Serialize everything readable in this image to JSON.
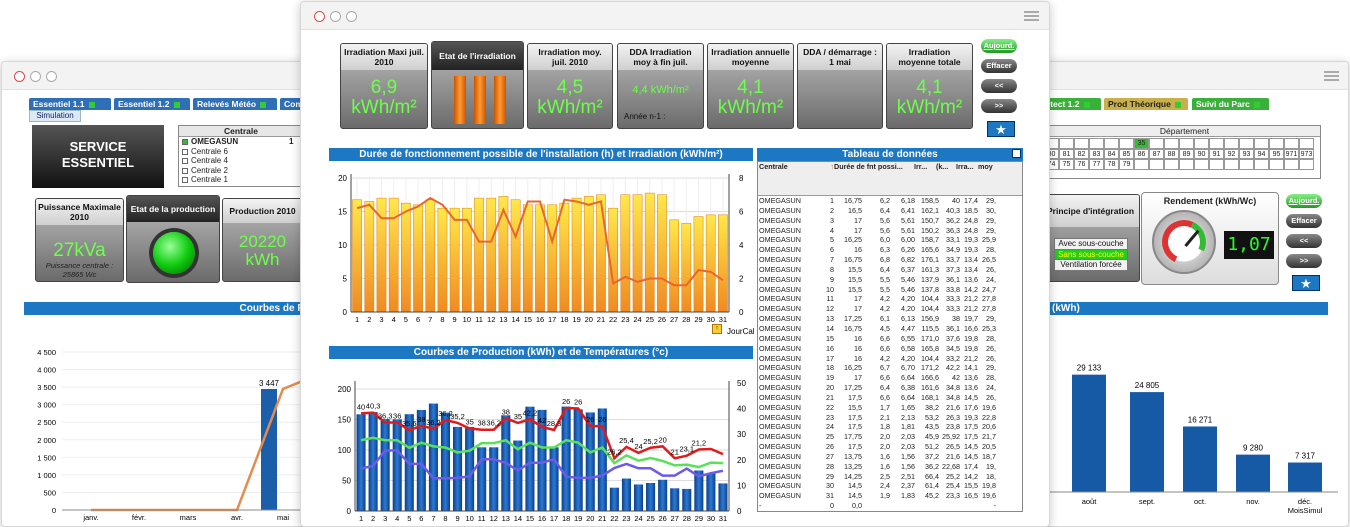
{
  "left": {
    "tabs": [
      {
        "label": "Essentiel 1.1"
      },
      {
        "label": "Essentiel 1.2"
      },
      {
        "label": "Relevés Météo"
      },
      {
        "label": "Com"
      }
    ],
    "subtab": "Simulation",
    "service_title": "SERVICE ESSENTIEL",
    "centrale": {
      "header": "Centrale",
      "items": [
        {
          "label": "OMEGASUN",
          "value": "1"
        },
        {
          "label": "Centrale 6",
          "value": ""
        },
        {
          "label": "Centrale 4",
          "value": ""
        },
        {
          "label": "Centrale 2",
          "value": ""
        },
        {
          "label": "Centrale 1",
          "value": ""
        }
      ]
    },
    "puissance": {
      "title": "Puissance Maximale 2010",
      "value": "27kVa",
      "sub": "Puissance centrale : 25865 Wc"
    },
    "etat_production": {
      "title": "Etat de la production"
    },
    "production": {
      "title": "Production 2010",
      "value": "20220 kWh"
    },
    "chart": {
      "title": "Courbes de Pro",
      "yticks": [
        "4 500",
        "4 000",
        "3 500",
        "3 000",
        "2 500",
        "2 000",
        "1 500",
        "1 000",
        "500",
        "0"
      ],
      "xticks": [
        "janv.",
        "févr.",
        "mars",
        "avr.",
        "mai"
      ],
      "bar_label": "3 447"
    }
  },
  "right": {
    "tabs": [
      {
        "label": "otect 1.2"
      },
      {
        "label": "Prod Théorique"
      },
      {
        "label": "Suivi du Parc"
      }
    ],
    "departement": {
      "header": "Département",
      "row1": [
        "",
        "",
        "",
        "",
        "",
        "",
        "35",
        "",
        "",
        "",
        "",
        "",
        "",
        "",
        "",
        "",
        "",
        ""
      ],
      "row2": [
        "80",
        "81",
        "82",
        "83",
        "84",
        "85",
        "86",
        "87",
        "88",
        "89",
        "90",
        "91",
        "92",
        "93",
        "94",
        "95",
        "971",
        "973"
      ],
      "row3": [
        "74",
        "75",
        "76",
        "77",
        "78",
        "79",
        "",
        "",
        "",
        "",
        "",
        "",
        "",
        "",
        "",
        "",
        "",
        ""
      ]
    },
    "principe": {
      "title": "Principe d'intégration",
      "options": [
        "Avec sous-couche",
        "Sans sous-couche",
        "Ventilation forcée"
      ],
      "selected": "Sans sous-couche"
    },
    "rendement": {
      "title": "Rendement (kWh/Wc)",
      "digital": "1,07"
    },
    "buttons": {
      "today": "Aujourd.",
      "clear": "Effacer",
      "prev": "<<",
      "next": ">>"
    },
    "chart": {
      "title": "(kWh)",
      "bars": [
        {
          "label": "août",
          "value": 29133,
          "text": "29 133"
        },
        {
          "label": "sept.",
          "value": 24805,
          "text": "24 805"
        },
        {
          "label": "oct.",
          "value": 16271,
          "text": "16 271"
        },
        {
          "label": "nov.",
          "value": 9280,
          "text": "9 280"
        },
        {
          "label": "déc.",
          "value": 7317,
          "text": "7 317"
        }
      ],
      "axis_label": "MoisSimul"
    }
  },
  "center": {
    "kpis": [
      {
        "title": "Irradiation Maxi juil. 2010",
        "value": "6,9 kWh/m²"
      },
      {
        "title": "Etat de l'irradiation",
        "value": ""
      },
      {
        "title": "Irradiation moy. juil. 2010",
        "value": "4,5 kWh/m²"
      },
      {
        "title": "DDA Irradiation moy à fin juil.",
        "value": "4,4 kWh/m²",
        "sub": "Année n-1 :"
      },
      {
        "title": "Irradiation annuelle moyenne",
        "value": "4,1 kWh/m²"
      },
      {
        "title": "DDA / démarrage : 1 mai",
        "value": ""
      },
      {
        "title": "Irradiation moyenne totale",
        "value": "4,1 kWh/m²"
      }
    ],
    "buttons": {
      "today": "Aujourd.",
      "clear": "Effacer",
      "prev": "<<",
      "next": ">>"
    },
    "chart1": {
      "title": "Durée de fonctionnement possible de l'installation (h) et Irradiation (kWh/m²)",
      "y_left": [
        "20",
        "15",
        "10",
        "5",
        "0"
      ],
      "y_right": [
        "8",
        "6",
        "4",
        "2",
        "0"
      ],
      "x_axis_label": "JourCal"
    },
    "chart2": {
      "title": "Courbes de Production (kWh) et de Températures (°c)",
      "y_left": [
        "200",
        "150",
        "100",
        "50",
        "0"
      ],
      "y_right": [
        "50",
        "40",
        "30",
        "20",
        "10",
        "0"
      ],
      "red_labels": [
        "40",
        "40,3",
        "36,3",
        "36",
        "35,6",
        "38",
        "36,2",
        "36,2",
        "35,2",
        "35",
        "38",
        "36,2",
        "38",
        "35",
        "42,2",
        "42",
        "28,3",
        "26",
        "26",
        "26",
        "26",
        "26,2",
        "25,4",
        "24",
        "25,2",
        "20",
        "21",
        "23,1",
        "21,2"
      ]
    },
    "table": {
      "title": "Tableau de données",
      "headers": [
        "Centrale",
        "",
        "Durée de fnt possi...",
        "Irr...",
        "(k...",
        "Irra...",
        "moy",
        "",
        ""
      ],
      "header_last": [
        "Irr... (k",
        "29,"
      ],
      "rows": [
        [
          "OMEGASUN",
          "1",
          "16,75",
          "6,2",
          "6,18",
          "158,5",
          "40",
          "17,4",
          "29,"
        ],
        [
          "OMEGASUN",
          "2",
          "16,5",
          "6,4",
          "6,41",
          "162,1",
          "40,3",
          "18,5",
          "30,"
        ],
        [
          "OMEGASUN",
          "3",
          "17",
          "5,6",
          "5,61",
          "150,7",
          "36,2",
          "24,8",
          "29,"
        ],
        [
          "OMEGASUN",
          "4",
          "17",
          "5,6",
          "5,61",
          "150,2",
          "36,3",
          "24,8",
          "29,"
        ],
        [
          "OMEGASUN",
          "5",
          "16,25",
          "6,0",
          "6,00",
          "158,7",
          "33,1",
          "19,3",
          "25,9"
        ],
        [
          "OMEGASUN",
          "6",
          "16",
          "6,3",
          "6,26",
          "165,6",
          "34,9",
          "19,3",
          "28,"
        ],
        [
          "OMEGASUN",
          "7",
          "16,75",
          "6,8",
          "6,82",
          "176,1",
          "33,7",
          "13,4",
          "26,5"
        ],
        [
          "OMEGASUN",
          "8",
          "15,5",
          "6,4",
          "6,37",
          "161,3",
          "37,3",
          "13,4",
          "26,"
        ],
        [
          "OMEGASUN",
          "9",
          "15,5",
          "5,5",
          "5,46",
          "137,9",
          "36,1",
          "13,6",
          "24,"
        ],
        [
          "OMEGASUN",
          "10",
          "15,5",
          "5,5",
          "5,46",
          "137,8",
          "33,8",
          "14,2",
          "24,7"
        ],
        [
          "OMEGASUN",
          "11",
          "17",
          "4,2",
          "4,20",
          "104,4",
          "33,3",
          "21,2",
          "27,8"
        ],
        [
          "OMEGASUN",
          "12",
          "17",
          "4,2",
          "4,20",
          "104,4",
          "33,3",
          "21,2",
          "27,8"
        ],
        [
          "OMEGASUN",
          "13",
          "17,25",
          "6,1",
          "6,13",
          "156,9",
          "38",
          "19,7",
          "29,"
        ],
        [
          "OMEGASUN",
          "14",
          "16,75",
          "4,5",
          "4,47",
          "115,5",
          "36,1",
          "16,6",
          "25,3"
        ],
        [
          "OMEGASUN",
          "15",
          "16",
          "6,6",
          "6,55",
          "171,0",
          "37,6",
          "19,8",
          "28,"
        ],
        [
          "OMEGASUN",
          "16",
          "16",
          "6,6",
          "6,58",
          "165,8",
          "34,5",
          "19,8",
          "26,"
        ],
        [
          "OMEGASUN",
          "17",
          "16",
          "4,2",
          "4,20",
          "104,4",
          "33,2",
          "21,2",
          "26,"
        ],
        [
          "OMEGASUN",
          "18",
          "16,25",
          "6,7",
          "6,70",
          "171,2",
          "42,2",
          "14,1",
          "29,"
        ],
        [
          "OMEGASUN",
          "19",
          "17",
          "6,6",
          "6,64",
          "166,6",
          "42",
          "13,6",
          "28,"
        ],
        [
          "OMEGASUN",
          "20",
          "17,25",
          "6,4",
          "6,38",
          "161,6",
          "34,8",
          "13,6",
          "24,"
        ],
        [
          "OMEGASUN",
          "21",
          "17,5",
          "6,6",
          "6,64",
          "168,1",
          "34,8",
          "14,5",
          "26,"
        ],
        [
          "OMEGASUN",
          "22",
          "15,5",
          "1,7",
          "1,65",
          "38,2",
          "21,6",
          "17,6",
          "19,6"
        ],
        [
          "OMEGASUN",
          "23",
          "17,5",
          "2,1",
          "2,13",
          "53,2",
          "26,3",
          "19,3",
          "22,8"
        ],
        [
          "OMEGASUN",
          "24",
          "17,5",
          "1,8",
          "1,81",
          "43,5",
          "23,8",
          "17,5",
          "20,6"
        ],
        [
          "OMEGASUN",
          "25",
          "17,75",
          "2,0",
          "2,03",
          "45,9",
          "25,92",
          "17,5",
          "21,7"
        ],
        [
          "OMEGASUN",
          "26",
          "17,5",
          "2,0",
          "2,03",
          "51,2",
          "26,5",
          "14,5",
          "20,5"
        ],
        [
          "OMEGASUN",
          "27",
          "13,75",
          "1,6",
          "1,56",
          "37,2",
          "21,6",
          "14,5",
          "18,7"
        ],
        [
          "OMEGASUN",
          "28",
          "13,25",
          "1,6",
          "1,56",
          "36,2",
          "22,68",
          "17,4",
          "19,"
        ],
        [
          "OMEGASUN",
          "29",
          "14,25",
          "2,5",
          "2,51",
          "66,4",
          "25,2",
          "14,2",
          "18,"
        ],
        [
          "OMEGASUN",
          "30",
          "14,5",
          "2,4",
          "2,37",
          "61,4",
          "25,4",
          "15,5",
          "19,8"
        ],
        [
          "OMEGASUN",
          "31",
          "14,5",
          "1,9",
          "1,83",
          "45,2",
          "23,3",
          "16,5",
          "19,6"
        ],
        [
          "-",
          "0",
          "0,0",
          "",
          "",
          "",
          "",
          "",
          "-"
        ]
      ]
    }
  },
  "chart_data": [
    {
      "type": "bar",
      "title": "Durée de fonctionnement possible de l'installation (h) et Irradiation (kWh/m²)",
      "categories": [
        "1",
        "2",
        "3",
        "4",
        "5",
        "6",
        "7",
        "8",
        "9",
        "10",
        "11",
        "12",
        "13",
        "14",
        "15",
        "16",
        "17",
        "18",
        "19",
        "20",
        "21",
        "22",
        "23",
        "24",
        "25",
        "26",
        "27",
        "28",
        "29",
        "30",
        "31"
      ],
      "series": [
        {
          "values": [
            16.75,
            16.5,
            17,
            17,
            16.25,
            16,
            16.75,
            15.5,
            15.5,
            15.5,
            17,
            17,
            17.25,
            16.75,
            16,
            16,
            16,
            16.25,
            17,
            17.25,
            17.5,
            15.5,
            17.5,
            17.5,
            17.75,
            17.5,
            13.75,
            13.25,
            14.25,
            14.5,
            14.5
          ]
        },
        {
          "values": [
            6.2,
            6.4,
            5.6,
            5.6,
            6.0,
            6.3,
            6.8,
            6.4,
            5.5,
            5.5,
            4.2,
            4.2,
            6.1,
            4.5,
            6.6,
            6.6,
            4.2,
            6.7,
            6.6,
            6.4,
            6.6,
            1.7,
            2.1,
            1.8,
            2.0,
            2.0,
            1.6,
            1.6,
            2.5,
            2.4,
            1.9
          ]
        }
      ],
      "ylim": [
        0,
        20
      ],
      "y2lim": [
        0,
        8
      ],
      "xlabel": "JourCal"
    },
    {
      "type": "bar",
      "title": "Courbes de Production (kWh) et de Températures (°c)",
      "categories": [
        "1",
        "2",
        "3",
        "4",
        "5",
        "6",
        "7",
        "8",
        "9",
        "10",
        "11",
        "12",
        "13",
        "14",
        "15",
        "16",
        "17",
        "18",
        "19",
        "20",
        "21",
        "22",
        "23",
        "24",
        "25",
        "26",
        "27",
        "28",
        "29",
        "30",
        "31"
      ],
      "series": [
        {
          "values": [
            158.5,
            162.1,
            150.7,
            150.2,
            158.7,
            165.6,
            176.1,
            161.3,
            137.9,
            137.8,
            104.4,
            104.4,
            156.9,
            115.5,
            171.0,
            165.8,
            104.4,
            171.2,
            166.6,
            161.6,
            168.1,
            38.2,
            53.2,
            43.5,
            45.9,
            51.2,
            37.2,
            36.2,
            66.4,
            61.4,
            45.2
          ]
        },
        {
          "values": [
            40,
            40.3,
            36.2,
            36.3,
            33.1,
            34.9,
            33.7,
            37.3,
            36.1,
            33.8,
            33.3,
            33.3,
            38,
            36.1,
            37.6,
            34.5,
            33.2,
            42.2,
            42,
            34.8,
            34.8,
            21.6,
            26.3,
            23.8,
            25.92,
            26.5,
            21.6,
            22.68,
            25.2,
            25.4,
            23.3
          ]
        },
        {
          "values": [
            29,
            30,
            29,
            29,
            25.9,
            28,
            26.5,
            26,
            24,
            24.7,
            27.8,
            27.8,
            29,
            25.3,
            28,
            26,
            26,
            29,
            28,
            24,
            26,
            19.6,
            22.8,
            20.6,
            21.7,
            20.5,
            18.7,
            19,
            18,
            19.8,
            19.6
          ]
        },
        {
          "values": [
            17.4,
            18.5,
            24.8,
            24.8,
            19.3,
            19.3,
            13.4,
            13.4,
            13.6,
            14.2,
            21.2,
            21.2,
            19.7,
            16.6,
            19.8,
            19.8,
            21.2,
            14.1,
            13.6,
            13.6,
            14.5,
            17.6,
            19.3,
            17.5,
            17.5,
            14.5,
            14.5,
            17.4,
            14.2,
            15.5,
            16.5
          ]
        }
      ],
      "ylim": [
        0,
        200
      ],
      "y2lim": [
        0,
        50
      ]
    },
    {
      "type": "bar",
      "categories": [
        "août",
        "sept.",
        "oct.",
        "nov.",
        "déc."
      ],
      "values": [
        29133,
        24805,
        16271,
        9280,
        7317
      ],
      "xlabel": "MoisSimul"
    },
    {
      "type": "line",
      "title": "Courbes de Pro",
      "categories": [
        "janv.",
        "févr.",
        "mars",
        "avr.",
        "mai"
      ],
      "values": [
        0,
        0,
        0,
        0,
        3447
      ],
      "ylim": [
        0,
        4500
      ]
    }
  ]
}
